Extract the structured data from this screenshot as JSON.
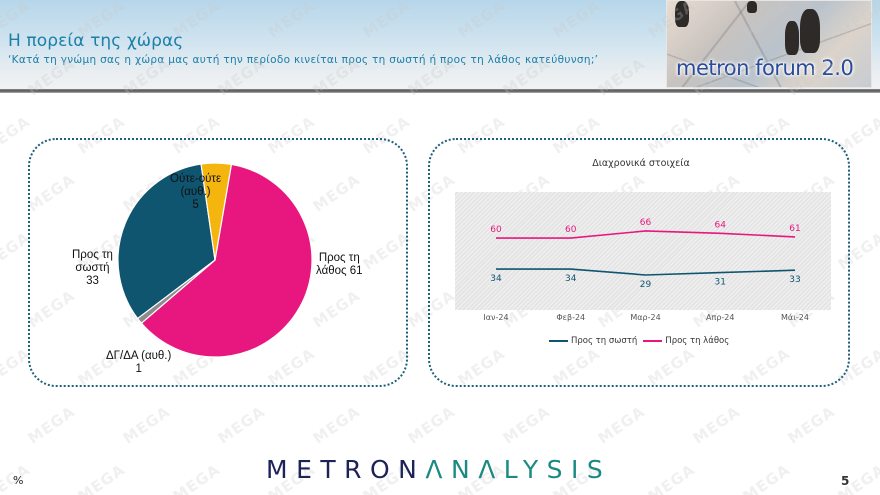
{
  "header": {
    "title": "Η πορεία της χώρας",
    "subtitle": "‘Κατά τη γνώμη σας η χώρα μας αυτή την περίοδο κινείται προς τη σωστή ή προς τη λάθος κατεύθυνση;’",
    "badge_text": "metron forum 2.0"
  },
  "watermark_text": "MEGA",
  "colors": {
    "correct": "#0f5570",
    "wrong": "#e8177f",
    "neither": "#f5b50f",
    "dk_na": "#8c8c8c",
    "title_blue": "#1b7fa8",
    "panel_border": "#1e5f7a"
  },
  "pie": {
    "labels": {
      "wrong": [
        "Προς τη",
        "λάθος 61"
      ],
      "correct": [
        "Προς τη",
        "σωστή",
        "33"
      ],
      "neither": [
        "Ούτε-ούτε",
        "(αυθ.)",
        "5"
      ],
      "dk_na": [
        "ΔΓ/ΔΑ (αυθ.)",
        "1"
      ]
    }
  },
  "line_chart": {
    "title": "Διαχρονικά στοιχεία",
    "legend": {
      "correct": "Προς τη σωστή",
      "wrong": "Προς τη λάθος"
    }
  },
  "chart_data": [
    {
      "type": "pie",
      "title": "",
      "categories": [
        "Προς τη λάθος",
        "ΔΓ/ΔΑ (αυθ.)",
        "Προς τη σωστή",
        "Ούτε-ούτε (αυθ.)"
      ],
      "values": [
        61,
        1,
        33,
        5
      ],
      "colors": [
        "#e8177f",
        "#8c8c8c",
        "#0f5570",
        "#f5b50f"
      ],
      "unit": "%"
    },
    {
      "type": "line",
      "title": "Διαχρονικά στοιχεία",
      "categories": [
        "Ιαν-24",
        "Φεβ-24",
        "Μαρ-24",
        "Απρ-24",
        "Μάι-24"
      ],
      "series": [
        {
          "name": "Προς τη σωστή",
          "values": [
            34,
            34,
            29,
            31,
            33
          ],
          "color": "#0f5570"
        },
        {
          "name": "Προς τη λάθος",
          "values": [
            60,
            60,
            66,
            64,
            61
          ],
          "color": "#e8177f"
        }
      ],
      "xlabel": "",
      "ylabel": "",
      "grid": false,
      "legend_position": "bottom",
      "data_labels": true
    }
  ],
  "footer": {
    "unit": "%",
    "logo_part1": "METRON",
    "logo_part2": "ΛNΛLYSIS",
    "page_number": "5"
  }
}
